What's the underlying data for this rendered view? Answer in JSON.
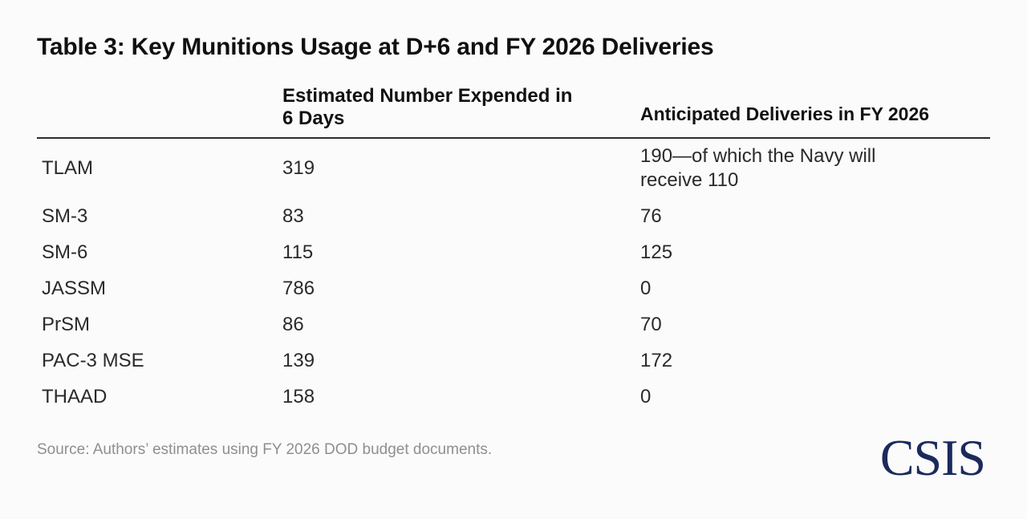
{
  "title": "Table 3: Key Munitions Usage at D+6 and FY 2026 Deliveries",
  "table": {
    "col_headers": {
      "expended_line1": "Estimated Number Expended in",
      "expended_line2": "6 Days",
      "deliveries": "Anticipated Deliveries in FY 2026"
    },
    "rows": [
      {
        "munition": "TLAM",
        "expended": "319",
        "deliveries": "190—of which the Navy will receive 110"
      },
      {
        "munition": "SM-3",
        "expended": "83",
        "deliveries": "76"
      },
      {
        "munition": "SM-6",
        "expended": "115",
        "deliveries": "125"
      },
      {
        "munition": "JASSM",
        "expended": "786",
        "deliveries": "0"
      },
      {
        "munition": "PrSM",
        "expended": "86",
        "deliveries": "70"
      },
      {
        "munition": "PAC-3 MSE",
        "expended": "139",
        "deliveries": "172"
      },
      {
        "munition": "THAAD",
        "expended": "158",
        "deliveries": "0"
      }
    ]
  },
  "footer": {
    "source": "Source: Authors’ estimates using FY 2026 DOD budget documents.",
    "logo_text": "CSIS"
  },
  "colors": {
    "background": "#fbfbfb",
    "rule": "#2b2b2b",
    "source_gray": "#8f8f8f",
    "logo_navy": "#1b2a5c"
  }
}
